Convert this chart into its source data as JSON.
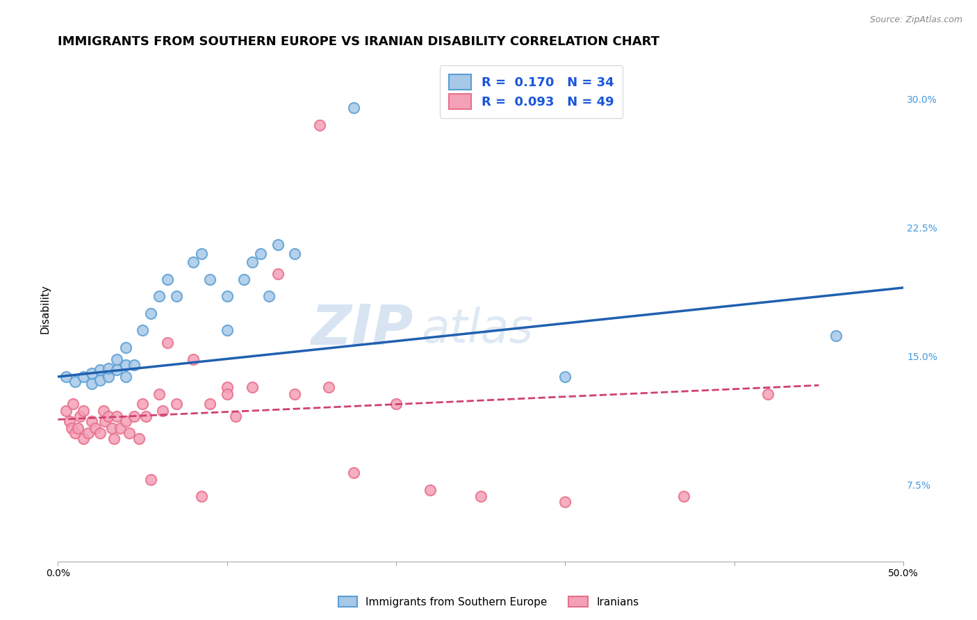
{
  "title": "IMMIGRANTS FROM SOUTHERN EUROPE VS IRANIAN DISABILITY CORRELATION CHART",
  "source": "Source: ZipAtlas.com",
  "ylabel": "Disability",
  "xlim": [
    0.0,
    0.5
  ],
  "ylim": [
    0.03,
    0.325
  ],
  "yticks": [
    0.075,
    0.15,
    0.225,
    0.3
  ],
  "ytick_labels": [
    "7.5%",
    "15.0%",
    "22.5%",
    "30.0%"
  ],
  "xticks": [
    0.0,
    0.1,
    0.2,
    0.3,
    0.4,
    0.5
  ],
  "xtick_labels": [
    "0.0%",
    "",
    "",
    "",
    "",
    "50.0%"
  ],
  "watermark1": "ZIP",
  "watermark2": "atlas",
  "blue_color": "#a8c8e8",
  "pink_color": "#f4a0b8",
  "blue_edge_color": "#5a9fd4",
  "pink_edge_color": "#e8708a",
  "blue_line_color": "#2060b0",
  "pink_line_color": "#d04070",
  "legend_label1": "Immigrants from Southern Europe",
  "legend_label2": "Iranians",
  "blue_scatter_x": [
    0.005,
    0.01,
    0.015,
    0.02,
    0.02,
    0.025,
    0.025,
    0.03,
    0.03,
    0.035,
    0.035,
    0.04,
    0.04,
    0.04,
    0.045,
    0.05,
    0.055,
    0.06,
    0.065,
    0.07,
    0.08,
    0.085,
    0.09,
    0.1,
    0.1,
    0.11,
    0.115,
    0.12,
    0.125,
    0.13,
    0.14,
    0.175,
    0.3,
    0.46
  ],
  "blue_scatter_y": [
    0.138,
    0.135,
    0.138,
    0.134,
    0.14,
    0.136,
    0.142,
    0.138,
    0.143,
    0.142,
    0.148,
    0.138,
    0.145,
    0.155,
    0.145,
    0.165,
    0.175,
    0.185,
    0.195,
    0.185,
    0.205,
    0.21,
    0.195,
    0.185,
    0.165,
    0.195,
    0.205,
    0.21,
    0.185,
    0.215,
    0.21,
    0.295,
    0.138,
    0.162
  ],
  "pink_scatter_x": [
    0.005,
    0.007,
    0.008,
    0.009,
    0.01,
    0.012,
    0.013,
    0.015,
    0.015,
    0.018,
    0.02,
    0.022,
    0.025,
    0.027,
    0.028,
    0.03,
    0.032,
    0.033,
    0.035,
    0.037,
    0.04,
    0.042,
    0.045,
    0.048,
    0.05,
    0.052,
    0.055,
    0.06,
    0.062,
    0.065,
    0.07,
    0.08,
    0.085,
    0.09,
    0.1,
    0.105,
    0.115,
    0.13,
    0.155,
    0.16,
    0.175,
    0.22,
    0.25,
    0.3,
    0.37,
    0.42,
    0.2,
    0.14,
    0.1
  ],
  "pink_scatter_y": [
    0.118,
    0.112,
    0.108,
    0.122,
    0.105,
    0.108,
    0.115,
    0.102,
    0.118,
    0.105,
    0.112,
    0.108,
    0.105,
    0.118,
    0.112,
    0.115,
    0.108,
    0.102,
    0.115,
    0.108,
    0.112,
    0.105,
    0.115,
    0.102,
    0.122,
    0.115,
    0.078,
    0.128,
    0.118,
    0.158,
    0.122,
    0.148,
    0.068,
    0.122,
    0.132,
    0.115,
    0.132,
    0.198,
    0.285,
    0.132,
    0.082,
    0.072,
    0.068,
    0.065,
    0.068,
    0.128,
    0.122,
    0.128,
    0.128
  ],
  "blue_trend_x": [
    0.0,
    0.5
  ],
  "blue_trend_y": [
    0.138,
    0.19
  ],
  "pink_trend_x": [
    0.0,
    0.45
  ],
  "pink_trend_y": [
    0.113,
    0.133
  ],
  "background_color": "#ffffff",
  "grid_color": "#cccccc",
  "title_fontsize": 13,
  "axis_label_fontsize": 11,
  "tick_fontsize": 10,
  "tick_color_right": "#4499dd",
  "marker_size": 120,
  "marker_linewidth": 1.5
}
